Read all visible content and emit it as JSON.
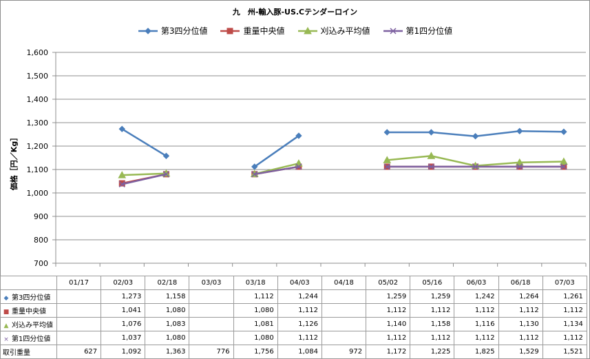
{
  "chart_data": {
    "type": "line",
    "title": "九　州-輸入豚-US.Cテンダーロイン",
    "ylabel": "価格［円／Kg］",
    "ylim": [
      700,
      1600
    ],
    "yticks": [
      "1,600",
      "1,500",
      "1,400",
      "1,300",
      "1,200",
      "1,100",
      "1,000",
      "900",
      "800",
      "700"
    ],
    "categories": [
      "01/17",
      "02/03",
      "02/18",
      "03/03",
      "03/18",
      "04/03",
      "04/18",
      "05/02",
      "05/16",
      "06/03",
      "06/18",
      "07/03"
    ],
    "legend_position": "top",
    "series": [
      {
        "name": "第3四分位値",
        "color": "#4a7ebb",
        "marker": "diamond",
        "values": [
          null,
          1273,
          1158,
          null,
          1112,
          1244,
          null,
          1259,
          1259,
          1242,
          1264,
          1261
        ],
        "labels": [
          "",
          "1,273",
          "1,158",
          "",
          "1,112",
          "1,244",
          "",
          "1,259",
          "1,259",
          "1,242",
          "1,264",
          "1,261"
        ]
      },
      {
        "name": "重量中央値",
        "color": "#be4b48",
        "marker": "square",
        "values": [
          null,
          1041,
          1080,
          null,
          1080,
          1112,
          null,
          1112,
          1112,
          1112,
          1112,
          1112
        ],
        "labels": [
          "",
          "1,041",
          "1,080",
          "",
          "1,080",
          "1,112",
          "",
          "1,112",
          "1,112",
          "1,112",
          "1,112",
          "1,112"
        ]
      },
      {
        "name": "刈込み平均値",
        "color": "#98b954",
        "marker": "triangle",
        "values": [
          null,
          1076,
          1083,
          null,
          1081,
          1126,
          null,
          1140,
          1158,
          1116,
          1130,
          1134
        ],
        "labels": [
          "",
          "1,076",
          "1,083",
          "",
          "1,081",
          "1,126",
          "",
          "1,140",
          "1,158",
          "1,116",
          "1,130",
          "1,134"
        ]
      },
      {
        "name": "第1四分位値",
        "color": "#7d60a0",
        "marker": "x",
        "values": [
          null,
          1037,
          1080,
          null,
          1080,
          1112,
          null,
          1112,
          1112,
          1112,
          1112,
          1112
        ],
        "labels": [
          "",
          "1,037",
          "1,080",
          "",
          "1,080",
          "1,112",
          "",
          "1,112",
          "1,112",
          "1,112",
          "1,112",
          "1,112"
        ]
      }
    ],
    "extra_rows": [
      {
        "name": "取引重量",
        "labels": [
          "627",
          "1,092",
          "1,363",
          "776",
          "1,756",
          "1,084",
          "972",
          "1,172",
          "1,225",
          "1,825",
          "1,529",
          "1,521"
        ]
      }
    ]
  }
}
